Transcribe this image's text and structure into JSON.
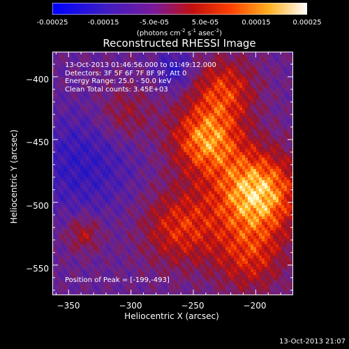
{
  "colorbar": {
    "tick_labels": [
      "-0.00025",
      "-0.00015",
      "-5.0e-05",
      "5.0e-05",
      "0.00015",
      "0.00025"
    ],
    "unit_text": "(photons cm",
    "unit_exp1": "-2",
    "unit_mid1": " s",
    "unit_exp2": "-1",
    "unit_mid2": " asec",
    "unit_exp3": "-2",
    "unit_end": ")",
    "range": [
      -0.00025,
      0.00025
    ]
  },
  "info": {
    "line1": "13-Oct-2013 01:46:56.000 to 01:49:12.000",
    "line2": "Detectors: 3F 5F 6F 7F 8F 9F, Att 0",
    "line3": "Energy Range: 25.0 - 50.0 keV",
    "line4": "Clean     Total counts: 3.45E+03"
  },
  "peak_text": "Position of Peak = [-199,-493]",
  "timestamp": "13-Oct-2013 21:07",
  "colors": {
    "axes": "#ffffff",
    "background": "#000000"
  },
  "chart_data": {
    "type": "heatmap",
    "title": "Reconstructed RHESSI Image",
    "xlabel": "Heliocentric X (arcsec)",
    "ylabel": "Heliocentric Y (arcsec)",
    "xlim": [
      -363,
      -170
    ],
    "ylim": [
      -574,
      -380
    ],
    "x_ticks": [
      -350,
      -300,
      -250,
      -200
    ],
    "x_tick_labels": [
      "−350",
      "−300",
      "−250",
      "−200"
    ],
    "y_ticks": [
      -550,
      -500,
      -450,
      -400
    ],
    "y_tick_labels": [
      "−550",
      "−500",
      "−450",
      "−400"
    ],
    "peak": [
      -199,
      -493
    ],
    "colormap": "blue-purple-red-yellow-white",
    "value_range": [
      -0.00025,
      0.00025
    ]
  }
}
